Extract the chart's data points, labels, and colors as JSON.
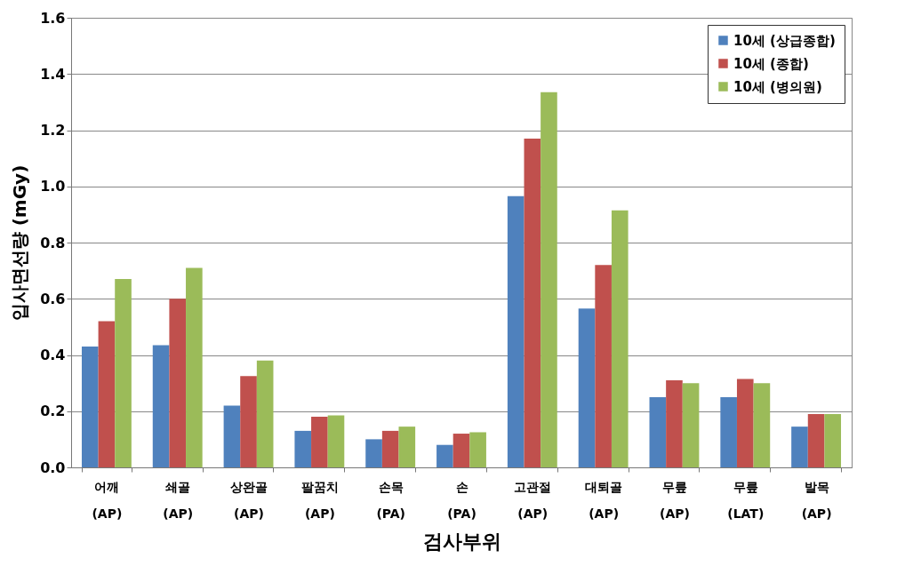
{
  "chart_data": {
    "type": "bar",
    "xlabel": "검사부위",
    "ylabel": "입사면선량 (mGy)",
    "categories": [
      "어깨 (AP)",
      "쇄골 (AP)",
      "상완골 (AP)",
      "팔꿈치 (AP)",
      "손목 (PA)",
      "손 (PA)",
      "고관절 (AP)",
      "대퇴골 (AP)",
      "무릎 (AP)",
      "무릎 (LAT)",
      "발목 (AP)"
    ],
    "series": [
      {
        "name": "10세 (상급종합)",
        "color": "#4f81bd",
        "values": [
          0.43,
          0.435,
          0.22,
          0.13,
          0.1,
          0.08,
          0.965,
          0.565,
          0.25,
          0.25,
          0.145
        ]
      },
      {
        "name": "10세 (종합)",
        "color": "#c0504d",
        "values": [
          0.52,
          0.6,
          0.325,
          0.18,
          0.13,
          0.12,
          1.17,
          0.72,
          0.31,
          0.315,
          0.19
        ]
      },
      {
        "name": "10세 (병의원)",
        "color": "#9bbb59",
        "values": [
          0.67,
          0.71,
          0.38,
          0.185,
          0.145,
          0.125,
          1.335,
          0.915,
          0.3,
          0.3,
          0.19
        ]
      }
    ],
    "ylim": [
      0,
      1.6
    ],
    "yticks": [
      {
        "value": 0,
        "label": "0.0"
      },
      {
        "value": 0.2,
        "label": "0.2"
      },
      {
        "value": 0.4,
        "label": "0.4"
      },
      {
        "value": 0.6,
        "label": "0.6"
      },
      {
        "value": 0.8,
        "label": "0.8"
      },
      {
        "value": 1.0,
        "label": "1.0"
      },
      {
        "value": 1.2,
        "label": "1.2"
      },
      {
        "value": 1.4,
        "label": "1.4"
      },
      {
        "value": 1.6,
        "label": "1.6"
      }
    ],
    "grid": "y",
    "legend": "top right"
  }
}
